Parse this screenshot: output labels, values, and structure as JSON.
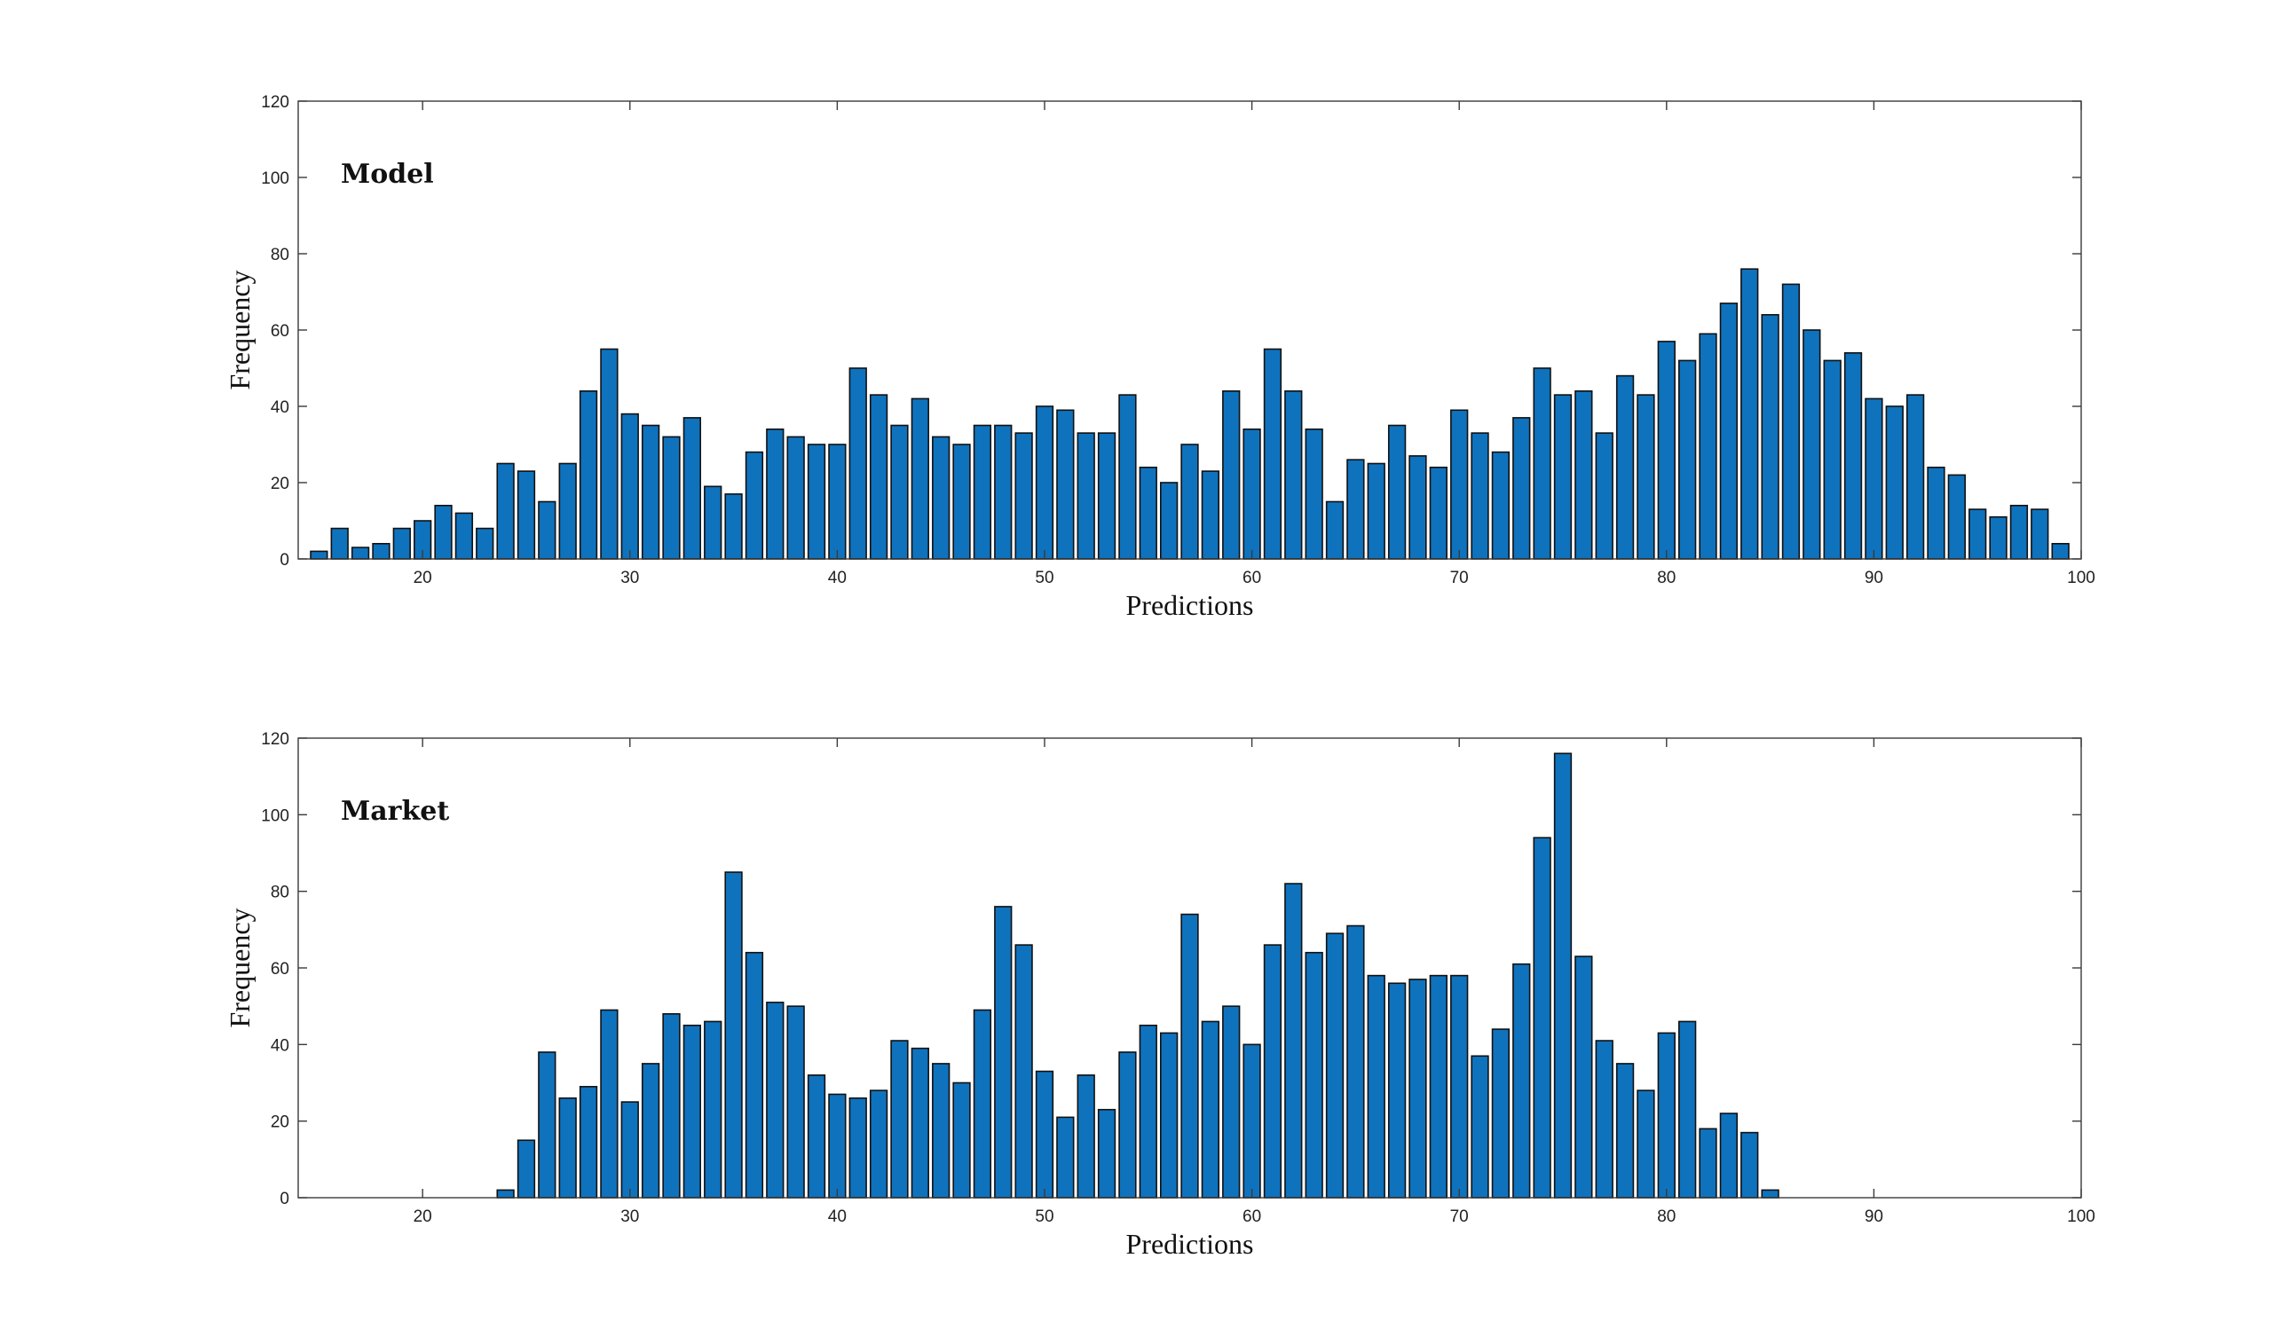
{
  "chart_data": [
    {
      "type": "bar",
      "panel_label": "Model",
      "xlabel": "Predictions",
      "ylabel": "Frequency",
      "xlim": [
        14,
        100
      ],
      "ylim": [
        0,
        120
      ],
      "xticks": [
        20,
        30,
        40,
        50,
        60,
        70,
        80,
        90,
        100
      ],
      "yticks": [
        0,
        20,
        40,
        60,
        80,
        100,
        120
      ],
      "grid": false,
      "x": [
        15,
        16,
        17,
        18,
        19,
        20,
        21,
        22,
        23,
        24,
        25,
        26,
        27,
        28,
        29,
        30,
        31,
        32,
        33,
        34,
        35,
        36,
        37,
        38,
        39,
        40,
        41,
        42,
        43,
        44,
        45,
        46,
        47,
        48,
        49,
        50,
        51,
        52,
        53,
        54,
        55,
        56,
        57,
        58,
        59,
        60,
        61,
        62,
        63,
        64,
        65,
        66,
        67,
        68,
        69,
        70,
        71,
        72,
        73,
        74,
        75,
        76,
        77,
        78,
        79,
        80,
        81,
        82,
        83,
        84,
        85,
        86,
        87,
        88,
        89,
        90,
        91,
        92,
        93,
        94,
        95,
        96,
        97,
        98,
        99
      ],
      "values": [
        2,
        8,
        3,
        4,
        8,
        10,
        14,
        12,
        8,
        25,
        23,
        15,
        25,
        44,
        55,
        38,
        35,
        32,
        37,
        19,
        17,
        28,
        34,
        32,
        30,
        30,
        50,
        43,
        35,
        42,
        32,
        30,
        35,
        35,
        33,
        40,
        39,
        33,
        33,
        43,
        24,
        20,
        30,
        23,
        44,
        34,
        55,
        44,
        34,
        15,
        26,
        25,
        35,
        27,
        24,
        39,
        33,
        28,
        37,
        50,
        43,
        44,
        33,
        48,
        43,
        57,
        52,
        59,
        67,
        76,
        64,
        72,
        60,
        52,
        54,
        42,
        40,
        43,
        24,
        22,
        13,
        11,
        14,
        13,
        4
      ]
    },
    {
      "type": "bar",
      "panel_label": "Market",
      "xlabel": "Predictions",
      "ylabel": "Frequency",
      "xlim": [
        14,
        100
      ],
      "ylim": [
        0,
        120
      ],
      "xticks": [
        20,
        30,
        40,
        50,
        60,
        70,
        80,
        90,
        100
      ],
      "yticks": [
        0,
        20,
        40,
        60,
        80,
        100,
        120
      ],
      "grid": false,
      "x": [
        24,
        25,
        26,
        27,
        28,
        29,
        30,
        31,
        32,
        33,
        34,
        35,
        36,
        37,
        38,
        39,
        40,
        41,
        42,
        43,
        44,
        45,
        46,
        47,
        48,
        49,
        50,
        51,
        52,
        53,
        54,
        55,
        56,
        57,
        58,
        59,
        60,
        61,
        62,
        63,
        64,
        65,
        66,
        67,
        68,
        69,
        70,
        71,
        72,
        73,
        74,
        75,
        76,
        77,
        78,
        79,
        80,
        81,
        82,
        83,
        84,
        85
      ],
      "values": [
        2,
        15,
        38,
        26,
        29,
        49,
        25,
        35,
        48,
        45,
        46,
        85,
        64,
        51,
        50,
        32,
        27,
        26,
        28,
        41,
        39,
        35,
        30,
        49,
        76,
        66,
        33,
        21,
        32,
        23,
        38,
        45,
        43,
        74,
        46,
        50,
        40,
        66,
        82,
        64,
        69,
        71,
        58,
        56,
        57,
        58,
        58,
        37,
        44,
        61,
        94,
        116,
        63,
        41,
        35,
        28,
        43,
        46,
        18,
        22,
        17,
        2
      ]
    }
  ]
}
